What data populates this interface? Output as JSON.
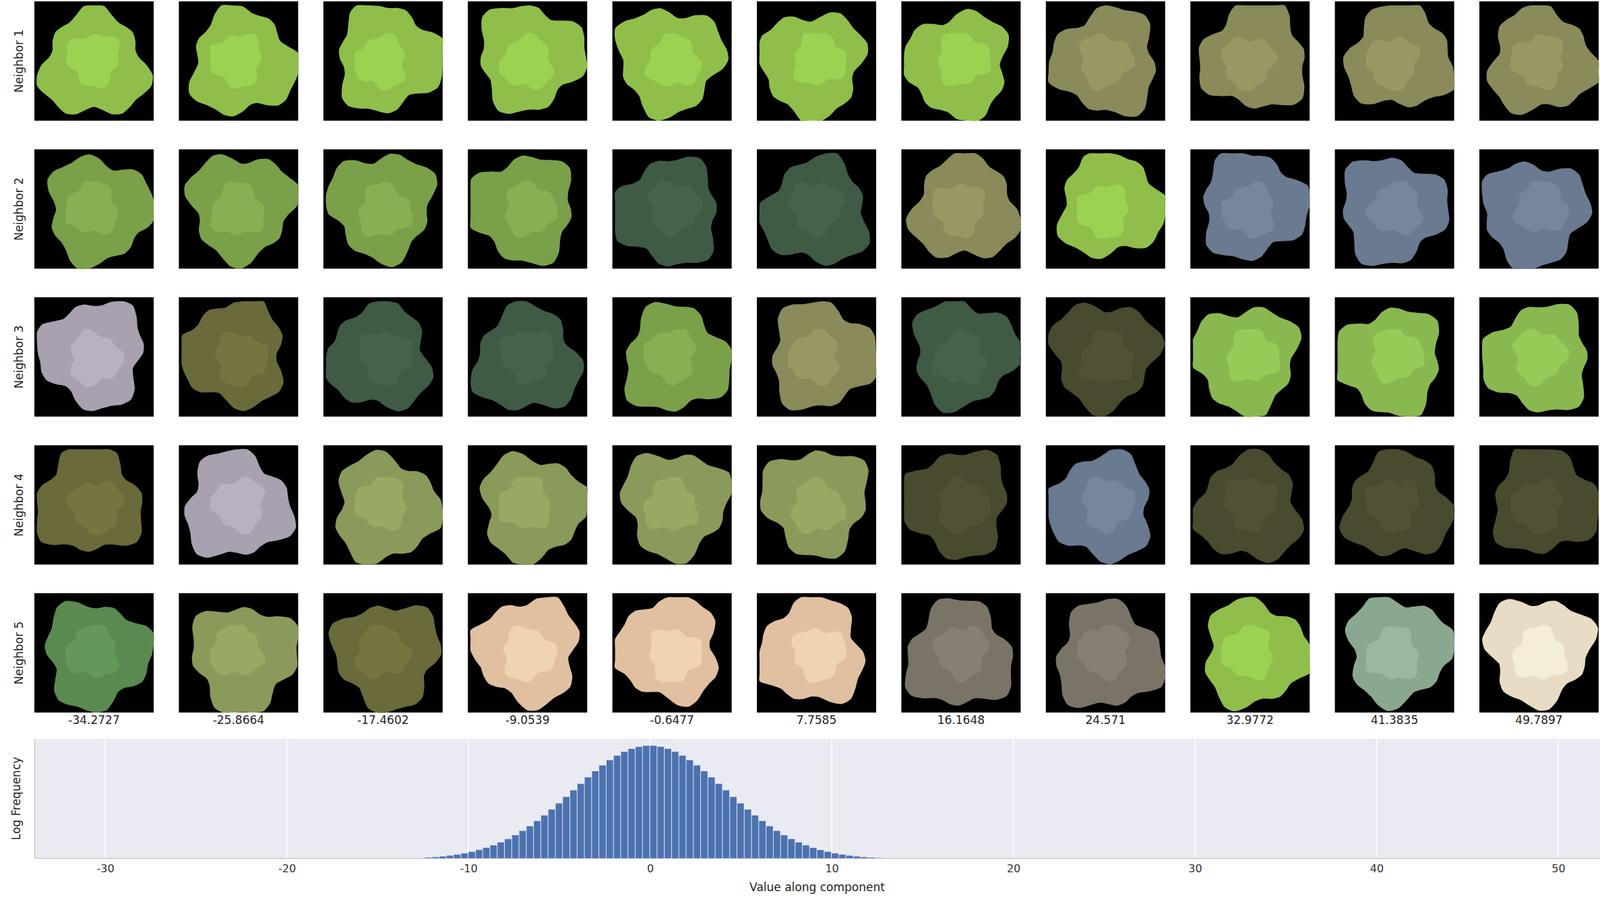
{
  "chart_data": [
    {
      "type": "image_grid",
      "categories": [
        "Neighbor 1",
        "Neighbor 2",
        "Neighbor 3",
        "Neighbor 4",
        "Neighbor 5"
      ],
      "x": [
        -34.2727,
        -25.8664,
        -17.4602,
        -9.0539,
        -0.6477,
        7.7585,
        16.1648,
        24.571,
        32.9772,
        41.3835,
        49.7897
      ],
      "colors": [
        [
          "#8fbf4a",
          "#8fbf4a",
          "#8fbf4a",
          "#8fbf4a",
          "#8fbf4a",
          "#8fbf4a",
          "#8fbf4a",
          "#8a8a5a",
          "#8a8a5a",
          "#8a8a5a",
          "#8a8a5a"
        ],
        [
          "#7aa04a",
          "#7aa04a",
          "#7aa04a",
          "#7aa04a",
          "#3f5a45",
          "#3f5a45",
          "#8a8a5a",
          "#8fbf4a",
          "#6a7a90",
          "#6a7a90",
          "#6a7a90"
        ],
        [
          "#a9a0b0",
          "#6b6a3a",
          "#3f5a45",
          "#3f5a45",
          "#7aa04a",
          "#8a8a5a",
          "#3f5a45",
          "#4a4a2e",
          "#8ab850",
          "#8ab850",
          "#8ab850"
        ],
        [
          "#6b6a3a",
          "#a9a0b0",
          "#8a9a5a",
          "#8a9a5a",
          "#8a9a5a",
          "#8a9a5a",
          "#4a4a2e",
          "#6a7a90",
          "#4a4a2e",
          "#4a4a2e",
          "#4a4a2e"
        ],
        [
          "#5a8a50",
          "#8a9a5a",
          "#6b6a3a",
          "#e0c0a0",
          "#e0c0a0",
          "#e0c0a0",
          "#7a7468",
          "#7a7468",
          "#8fbf4a",
          "#8aa890",
          "#e8dcc4"
        ]
      ]
    },
    {
      "type": "histogram",
      "x_label": "Value along component",
      "y_label": "Log Frequency",
      "bins": [
        -12.4,
        -12.0,
        -11.6,
        -11.2,
        -10.8,
        -10.4,
        -10.0,
        -9.6,
        -9.2,
        -8.8,
        -8.4,
        -8.0,
        -7.6,
        -7.2,
        -6.8,
        -6.4,
        -6.0,
        -5.6,
        -5.2,
        -4.8,
        -4.4,
        -4.0,
        -3.6,
        -3.2,
        -2.8,
        -2.4,
        -2.0,
        -1.6,
        -1.2,
        -0.8,
        -0.4,
        0.0,
        0.4,
        0.8,
        1.2,
        1.6,
        2.0,
        2.4,
        2.8,
        3.2,
        3.6,
        4.0,
        4.4,
        4.8,
        5.2,
        5.6,
        6.0,
        6.4,
        6.8,
        7.2,
        7.6,
        8.0,
        8.4,
        8.8,
        9.2,
        9.6,
        10.0,
        10.4,
        10.8,
        11.2,
        11.6,
        12.0,
        12.4,
        12.8
      ],
      "values": [
        0.05,
        0.09,
        0.15,
        0.22,
        0.31,
        0.42,
        0.56,
        0.72,
        0.91,
        1.13,
        1.39,
        1.68,
        2.02,
        2.4,
        2.81,
        3.27,
        3.76,
        4.28,
        4.82,
        5.39,
        5.97,
        6.54,
        7.11,
        7.65,
        8.16,
        8.62,
        9.02,
        9.36,
        9.62,
        9.8,
        9.89,
        9.89,
        9.8,
        9.62,
        9.36,
        9.02,
        8.62,
        8.16,
        7.65,
        7.11,
        6.54,
        5.97,
        5.39,
        4.82,
        4.28,
        3.76,
        3.27,
        2.81,
        2.4,
        2.02,
        1.68,
        1.39,
        1.13,
        0.91,
        0.72,
        0.56,
        0.42,
        0.31,
        0.22,
        0.15,
        0.09,
        0.05,
        0.02
      ],
      "color": "#4c72b0",
      "xlim": [
        -33.9,
        52.3
      ],
      "xticks": [
        -30,
        -20,
        -10,
        0,
        10,
        20,
        30,
        40,
        50
      ],
      "ylim": [
        0,
        10.5
      ],
      "yticks": [],
      "grid": true,
      "tick_labels": "x"
    }
  ]
}
